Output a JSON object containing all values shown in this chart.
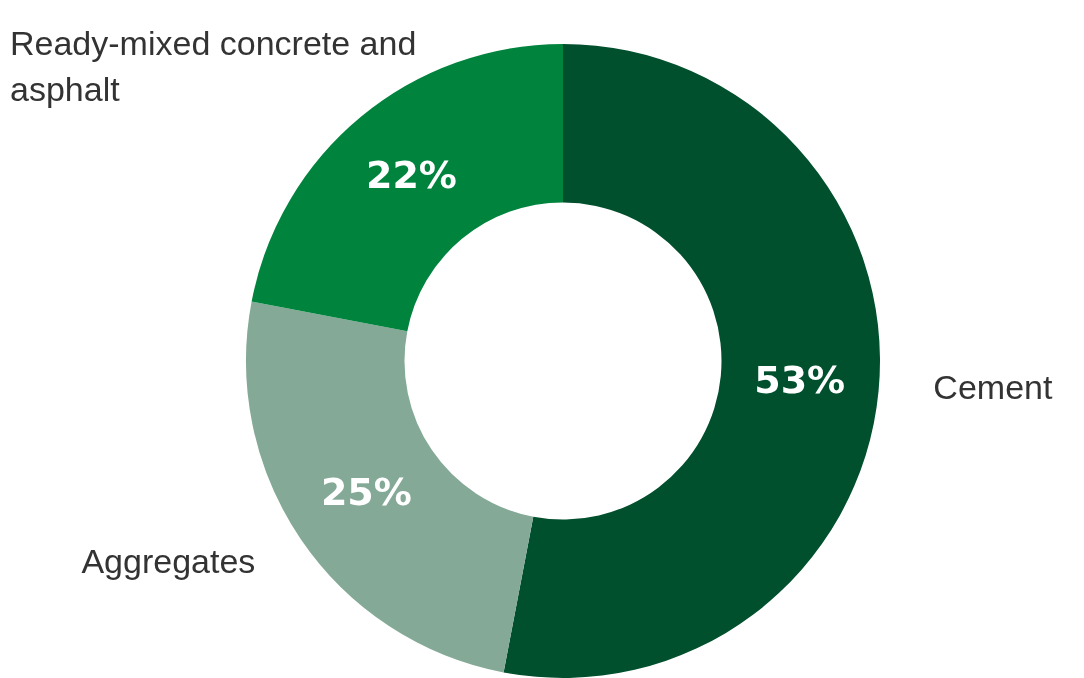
{
  "chart_data": {
    "type": "donut",
    "categories": [
      "Cement",
      "Aggregates",
      "Ready-mixed concrete and asphalt"
    ],
    "values": [
      53,
      25,
      22
    ],
    "value_labels": [
      "53%",
      "25%",
      "22%"
    ],
    "colors": [
      "#004f2d",
      "#84a996",
      "#00843d"
    ],
    "legend": false
  }
}
